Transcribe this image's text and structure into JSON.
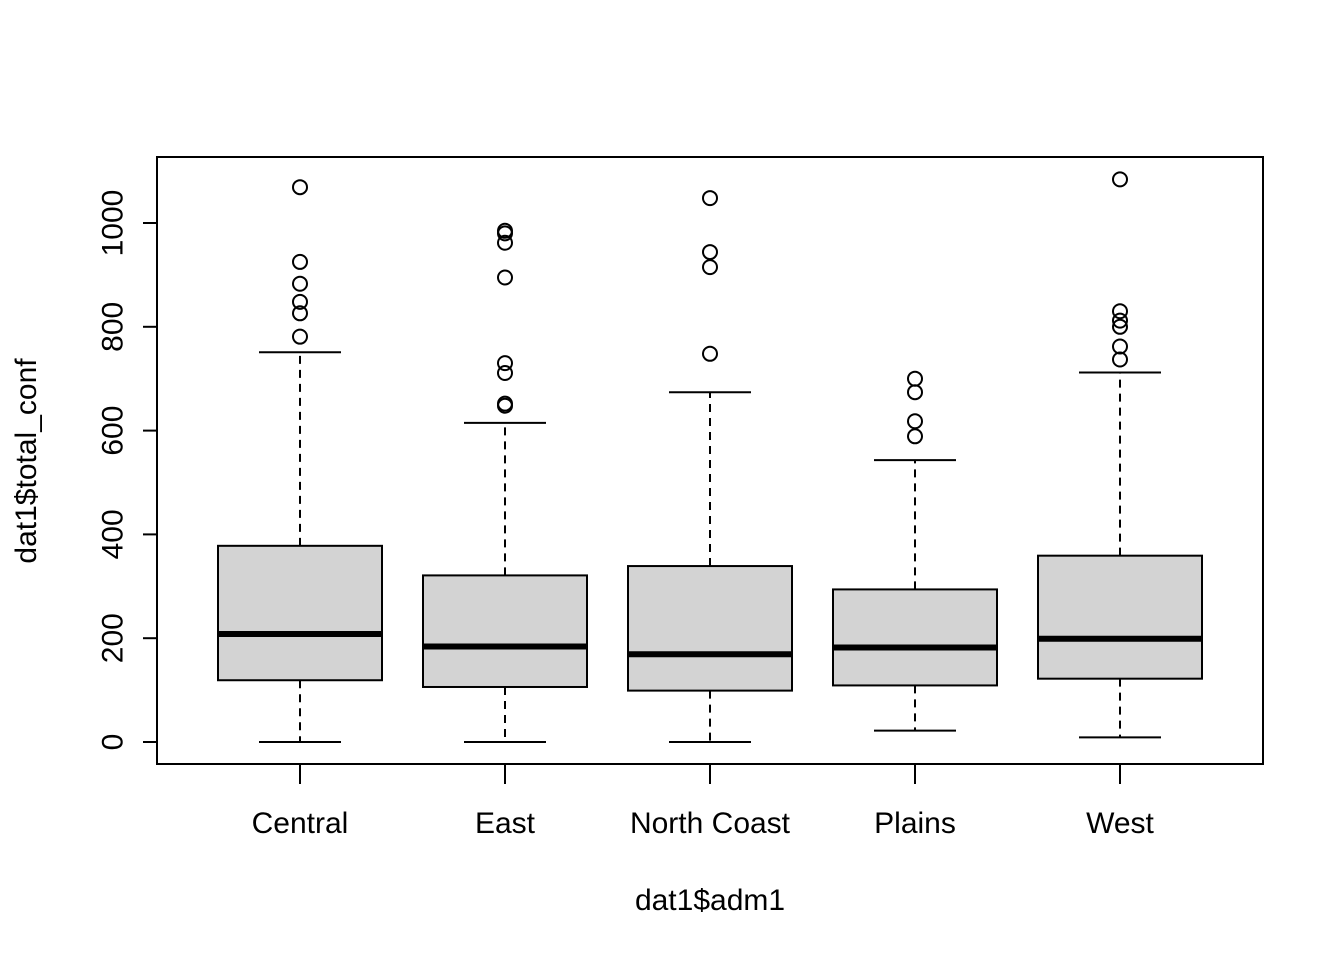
{
  "chart_data": {
    "type": "boxplot",
    "title": "",
    "xlabel": "dat1$adm1",
    "ylabel": "dat1$total_conf",
    "ylim": [
      -42,
      1128
    ],
    "y_ticks": [
      0,
      200,
      400,
      600,
      800,
      1000
    ],
    "y_tick_labels": [
      "0",
      "200",
      "400",
      "600",
      "800",
      "1000"
    ],
    "grid": false,
    "legend": "none",
    "colors": {
      "box_fill": "#d3d3d3",
      "stroke": "#000000"
    },
    "categories": [
      "Central",
      "East",
      "North Coast",
      "Plains",
      "West"
    ],
    "boxes": [
      {
        "category": "Central",
        "whisker_low": 0,
        "q1": 119,
        "median": 208,
        "q3": 378,
        "whisker_high": 751,
        "outliers": [
          1069,
          925,
          883,
          848,
          826,
          781
        ]
      },
      {
        "category": "East",
        "whisker_low": 0,
        "q1": 106,
        "median": 184,
        "q3": 321,
        "whisker_high": 615,
        "outliers": [
          985,
          980,
          962,
          895,
          730,
          711,
          652,
          648
        ]
      },
      {
        "category": "North Coast",
        "whisker_low": 0,
        "q1": 99,
        "median": 169,
        "q3": 339,
        "whisker_high": 674,
        "outliers": [
          1048,
          944,
          915,
          748
        ]
      },
      {
        "category": "Plains",
        "whisker_low": 22,
        "q1": 109,
        "median": 182,
        "q3": 294,
        "whisker_high": 543,
        "outliers": [
          700,
          674,
          618,
          589
        ]
      },
      {
        "category": "West",
        "whisker_low": 9,
        "q1": 122,
        "median": 199,
        "q3": 359,
        "whisker_high": 712,
        "outliers": [
          1084,
          830,
          812,
          800,
          762,
          737
        ]
      }
    ]
  }
}
